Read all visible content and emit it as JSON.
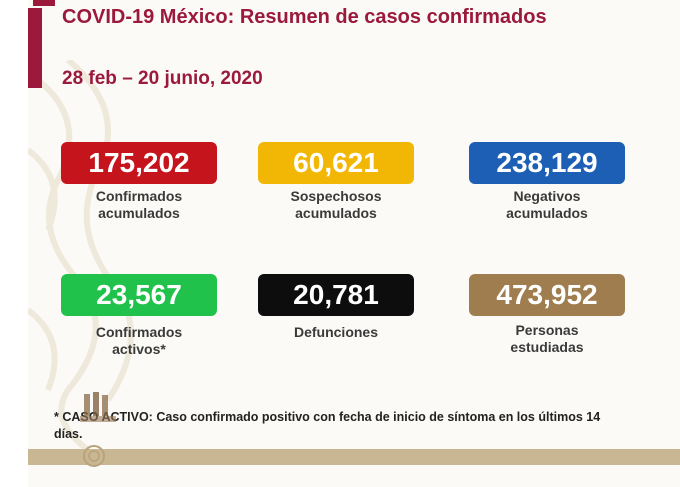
{
  "header": {
    "title": "COVID-19 México: Resumen de casos confirmados",
    "date_range": "28 feb – 20 junio, 2020"
  },
  "stats": [
    {
      "value": "175,202",
      "label_line1": "Confirmados",
      "label_line2": "acumulados",
      "color": "#c5141c"
    },
    {
      "value": "60,621",
      "label_line1": "Sospechosos",
      "label_line2": "acumulados",
      "color": "#f2b705"
    },
    {
      "value": "238,129",
      "label_line1": "Negativos",
      "label_line2": "acumulados",
      "color": "#1c5fb4"
    },
    {
      "value": "23,567",
      "label_line1": "Confirmados",
      "label_line2": "activos*",
      "color": "#21c24b"
    },
    {
      "value": "20,781",
      "label_line1": "Defunciones",
      "label_line2": "",
      "color": "#0d0d0d"
    },
    {
      "value": "473,952",
      "label_line1": "Personas",
      "label_line2": "estudiadas",
      "color": "#a07d4e"
    }
  ],
  "footnote": {
    "text": "* CASO ACTIVO: Caso confirmado positivo con fecha de inicio de síntoma en los últimos 14 días."
  },
  "colors": {
    "accent": "#9b1a3b",
    "band": "#c9b793"
  }
}
